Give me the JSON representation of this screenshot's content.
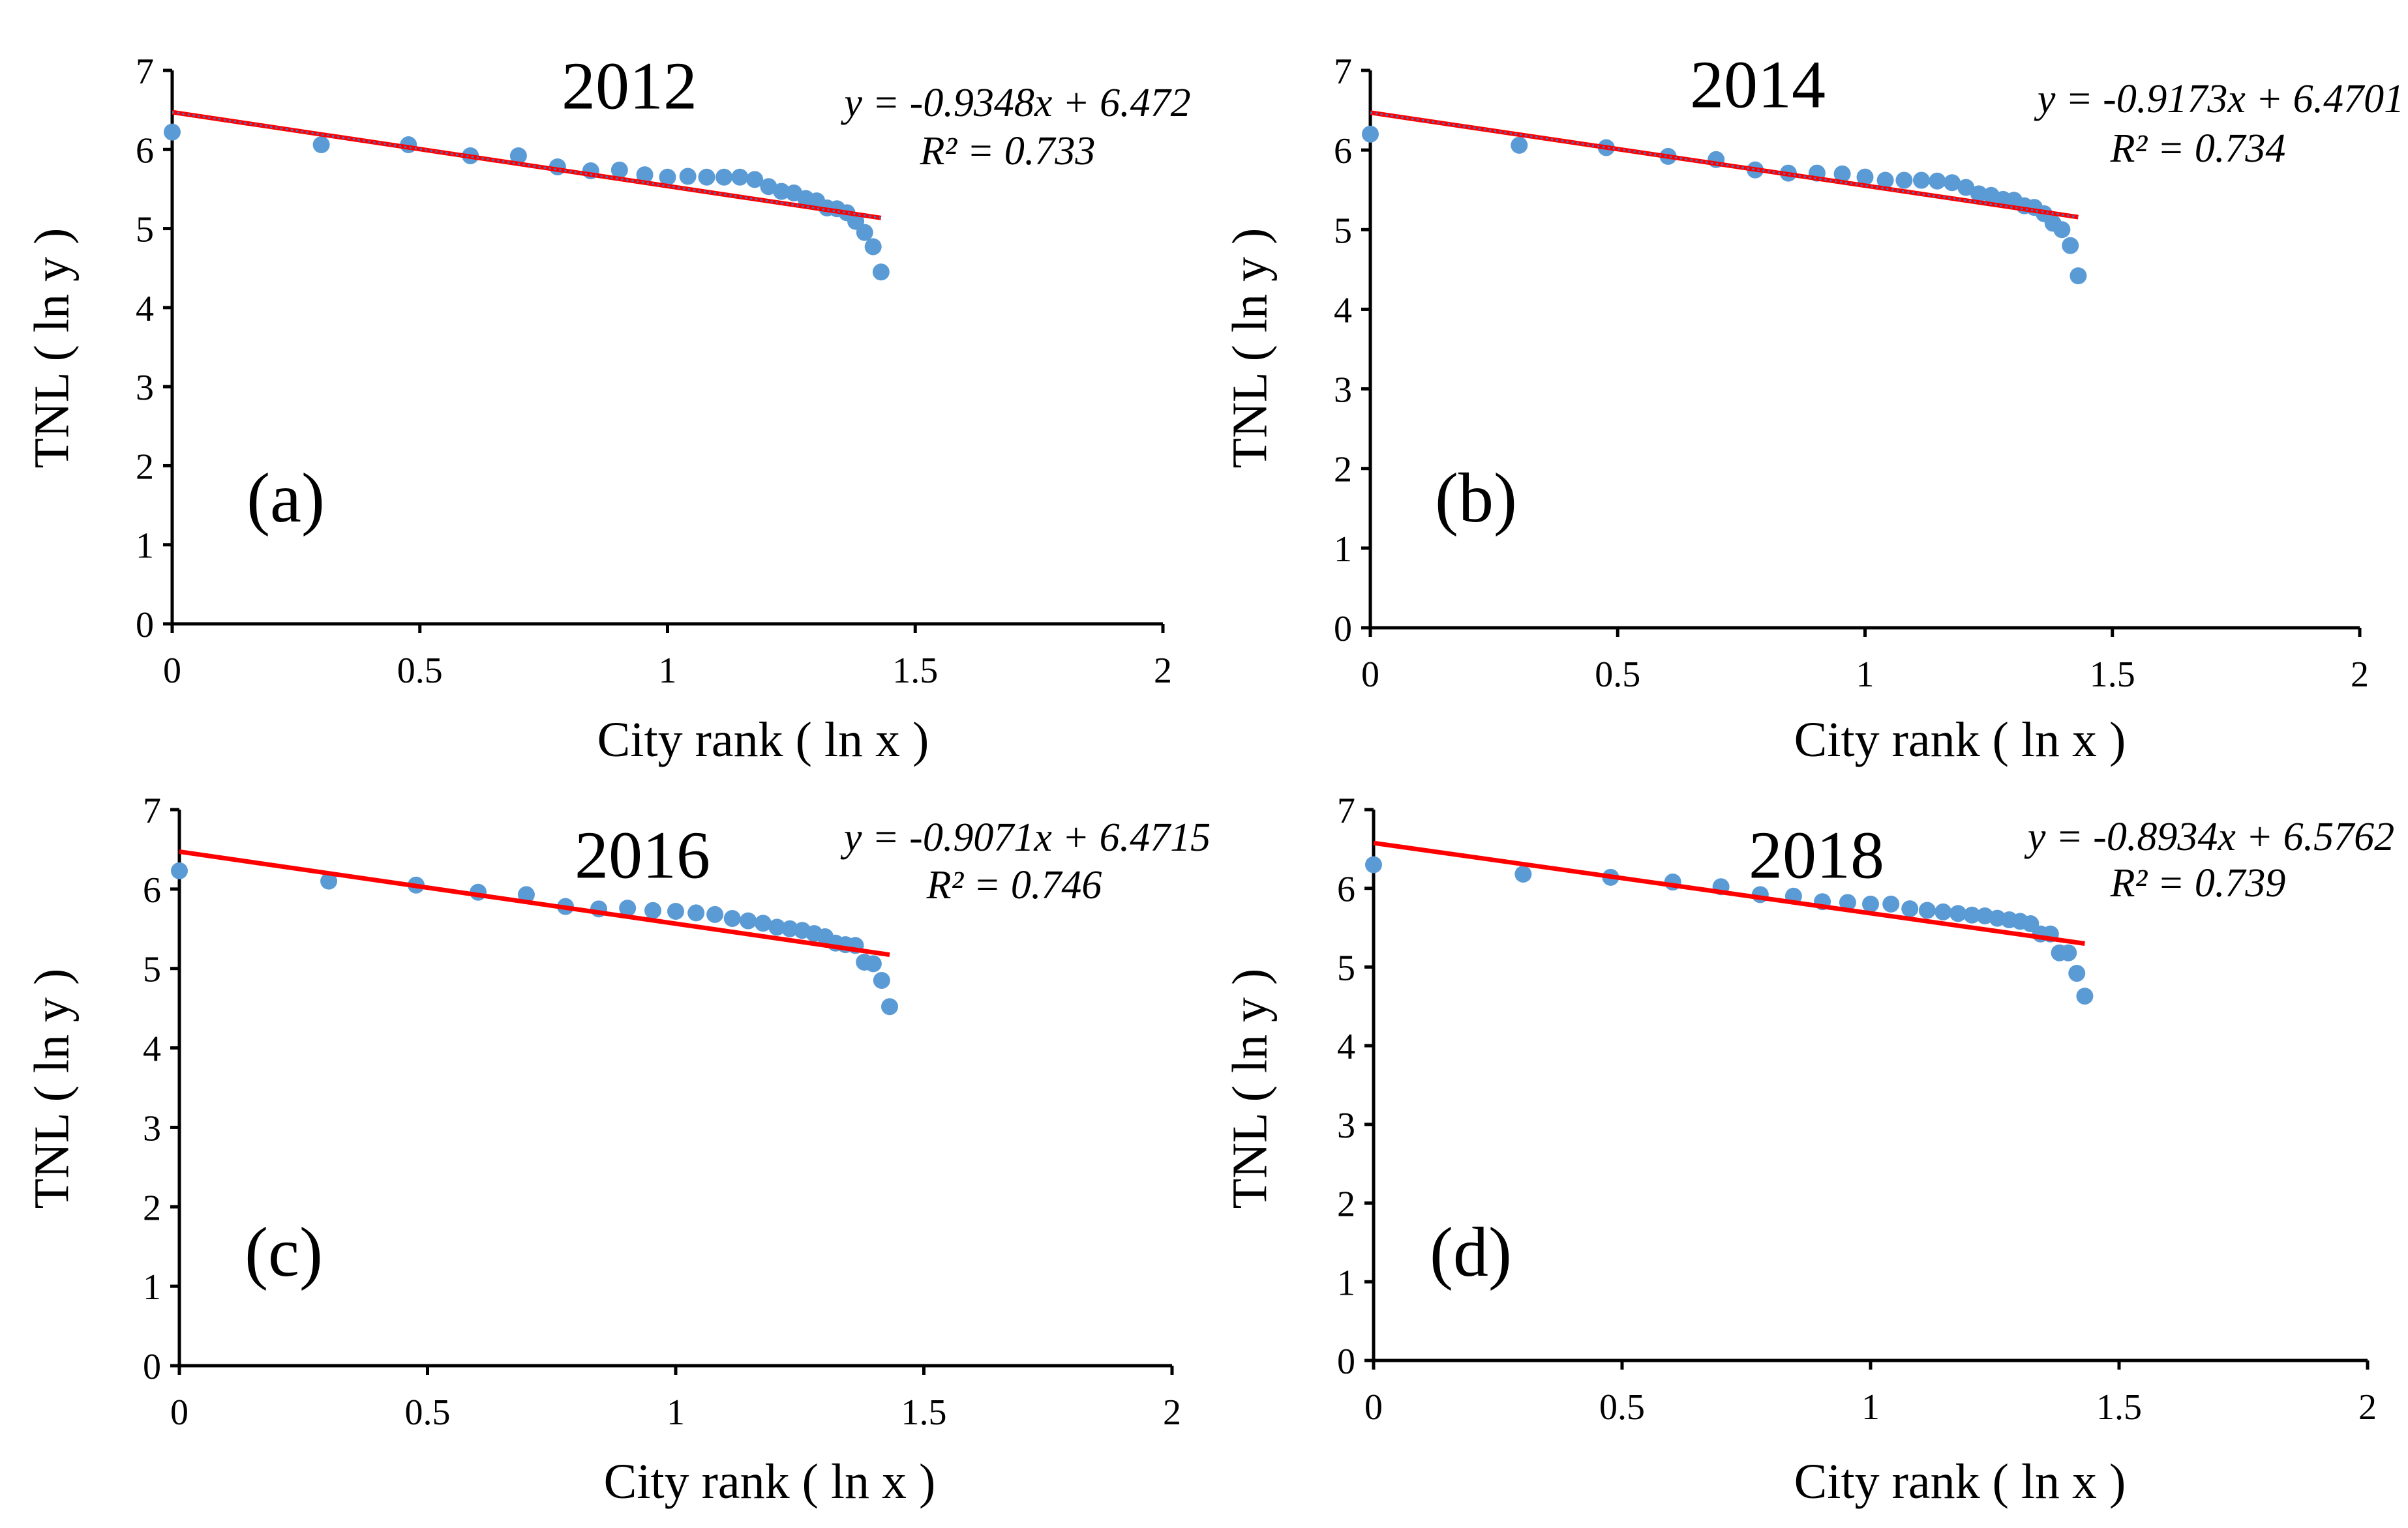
{
  "figure": {
    "colors": {
      "points": "#5b9bd5",
      "trendline": "#ff0000",
      "trendline_dots": "#4472c4",
      "axis": "#000000",
      "background": "#ffffff"
    }
  },
  "chart_data": [
    {
      "type": "scatter",
      "panel_label": "(a)",
      "title": "2012",
      "xlabel": "City rank ( ln x )",
      "ylabel": "TNL ( ln y )",
      "xlim": [
        0,
        2
      ],
      "ylim": [
        0,
        7
      ],
      "xticks": [
        "0",
        "0.5",
        "1",
        "1.5",
        "2"
      ],
      "yticks": [
        "0",
        "1",
        "2",
        "3",
        "4",
        "5",
        "6",
        "7"
      ],
      "trendline": {
        "slope": -0.9348,
        "intercept": 6.472,
        "x_range": [
          0,
          1.431
        ],
        "style": "dotted-overlay"
      },
      "equation": "y = -0.9348x + 6.472",
      "r2": "R² = 0.733",
      "x": [
        0,
        0.301,
        0.477,
        0.602,
        0.699,
        0.778,
        0.845,
        0.903,
        0.954,
        1.0,
        1.041,
        1.079,
        1.114,
        1.146,
        1.176,
        1.204,
        1.23,
        1.255,
        1.279,
        1.301,
        1.322,
        1.342,
        1.362,
        1.38,
        1.398,
        1.415,
        1.431
      ],
      "y": [
        6.22,
        6.06,
        6.06,
        5.92,
        5.92,
        5.78,
        5.73,
        5.74,
        5.68,
        5.65,
        5.66,
        5.65,
        5.65,
        5.65,
        5.62,
        5.53,
        5.47,
        5.45,
        5.38,
        5.35,
        5.26,
        5.25,
        5.2,
        5.09,
        4.95,
        4.77,
        4.45
      ]
    },
    {
      "type": "scatter",
      "panel_label": "(b)",
      "title": "2014",
      "xlabel": "City rank ( ln x )",
      "ylabel": "TNL ( ln y )",
      "xlim": [
        0,
        2
      ],
      "ylim": [
        0,
        7
      ],
      "xticks": [
        "0",
        "0.5",
        "1",
        "1.5",
        "2"
      ],
      "yticks": [
        "0",
        "1",
        "2",
        "3",
        "4",
        "5",
        "6",
        "7"
      ],
      "trendline": {
        "slope": -0.9173,
        "intercept": 6.4701,
        "x_range": [
          0,
          1.431
        ],
        "style": "dotted-overlay"
      },
      "equation": "y = -0.9173x + 6.4701",
      "r2": "R² = 0.734",
      "x": [
        0,
        0.301,
        0.477,
        0.602,
        0.699,
        0.778,
        0.845,
        0.903,
        0.954,
        1.0,
        1.041,
        1.079,
        1.114,
        1.146,
        1.176,
        1.204,
        1.23,
        1.255,
        1.279,
        1.301,
        1.322,
        1.342,
        1.362,
        1.38,
        1.398,
        1.415,
        1.431
      ],
      "y": [
        6.2,
        6.06,
        6.03,
        5.92,
        5.88,
        5.75,
        5.71,
        5.71,
        5.7,
        5.66,
        5.62,
        5.62,
        5.62,
        5.61,
        5.59,
        5.53,
        5.45,
        5.43,
        5.38,
        5.37,
        5.3,
        5.28,
        5.2,
        5.08,
        5.0,
        4.8,
        4.42
      ]
    },
    {
      "type": "scatter",
      "panel_label": "(c)",
      "title": "2016",
      "xlabel": "City rank ( ln x )",
      "ylabel": "TNL ( ln y )",
      "xlim": [
        0,
        2
      ],
      "ylim": [
        0,
        7
      ],
      "xticks": [
        "0",
        "0.5",
        "1",
        "1.5",
        "2"
      ],
      "yticks": [
        "0",
        "1",
        "2",
        "3",
        "4",
        "5",
        "6",
        "7"
      ],
      "trendline": {
        "slope": -0.9071,
        "intercept": 6.4715,
        "x_range": [
          0,
          1.431
        ],
        "style": "solid"
      },
      "equation": "y = -0.9071x + 6.4715",
      "r2": "R² = 0.746",
      "x": [
        0,
        0.301,
        0.477,
        0.602,
        0.699,
        0.778,
        0.845,
        0.903,
        0.954,
        1.0,
        1.041,
        1.079,
        1.114,
        1.146,
        1.176,
        1.204,
        1.23,
        1.255,
        1.279,
        1.301,
        1.322,
        1.342,
        1.362,
        1.38,
        1.398,
        1.415,
        1.431
      ],
      "y": [
        6.23,
        6.1,
        6.05,
        5.96,
        5.93,
        5.78,
        5.75,
        5.76,
        5.73,
        5.72,
        5.7,
        5.68,
        5.63,
        5.6,
        5.57,
        5.52,
        5.5,
        5.48,
        5.44,
        5.4,
        5.32,
        5.3,
        5.29,
        5.08,
        5.06,
        4.85,
        4.52
      ]
    },
    {
      "type": "scatter",
      "panel_label": "(d)",
      "title": "2018",
      "xlabel": "City rank ( ln x )",
      "ylabel": "TNL ( ln y )",
      "xlim": [
        0,
        2
      ],
      "ylim": [
        0,
        7
      ],
      "xticks": [
        "0",
        "0.5",
        "1",
        "1.5",
        "2"
      ],
      "yticks": [
        "0",
        "1",
        "2",
        "3",
        "4",
        "5",
        "6",
        "7"
      ],
      "trendline": {
        "slope": -0.8934,
        "intercept": 6.5762,
        "x_range": [
          0,
          1.431
        ],
        "style": "solid"
      },
      "equation": "y = -0.8934x + 6.5762",
      "r2": "R² = 0.739",
      "x": [
        0,
        0.301,
        0.477,
        0.602,
        0.699,
        0.778,
        0.845,
        0.903,
        0.954,
        1.0,
        1.041,
        1.079,
        1.114,
        1.146,
        1.176,
        1.204,
        1.23,
        1.255,
        1.279,
        1.301,
        1.322,
        1.342,
        1.362,
        1.38,
        1.398,
        1.415,
        1.431
      ],
      "y": [
        6.3,
        6.18,
        6.14,
        6.08,
        6.02,
        5.92,
        5.9,
        5.83,
        5.82,
        5.8,
        5.8,
        5.74,
        5.72,
        5.7,
        5.68,
        5.66,
        5.65,
        5.62,
        5.6,
        5.58,
        5.55,
        5.42,
        5.42,
        5.18,
        5.18,
        4.92,
        4.63
      ]
    }
  ]
}
